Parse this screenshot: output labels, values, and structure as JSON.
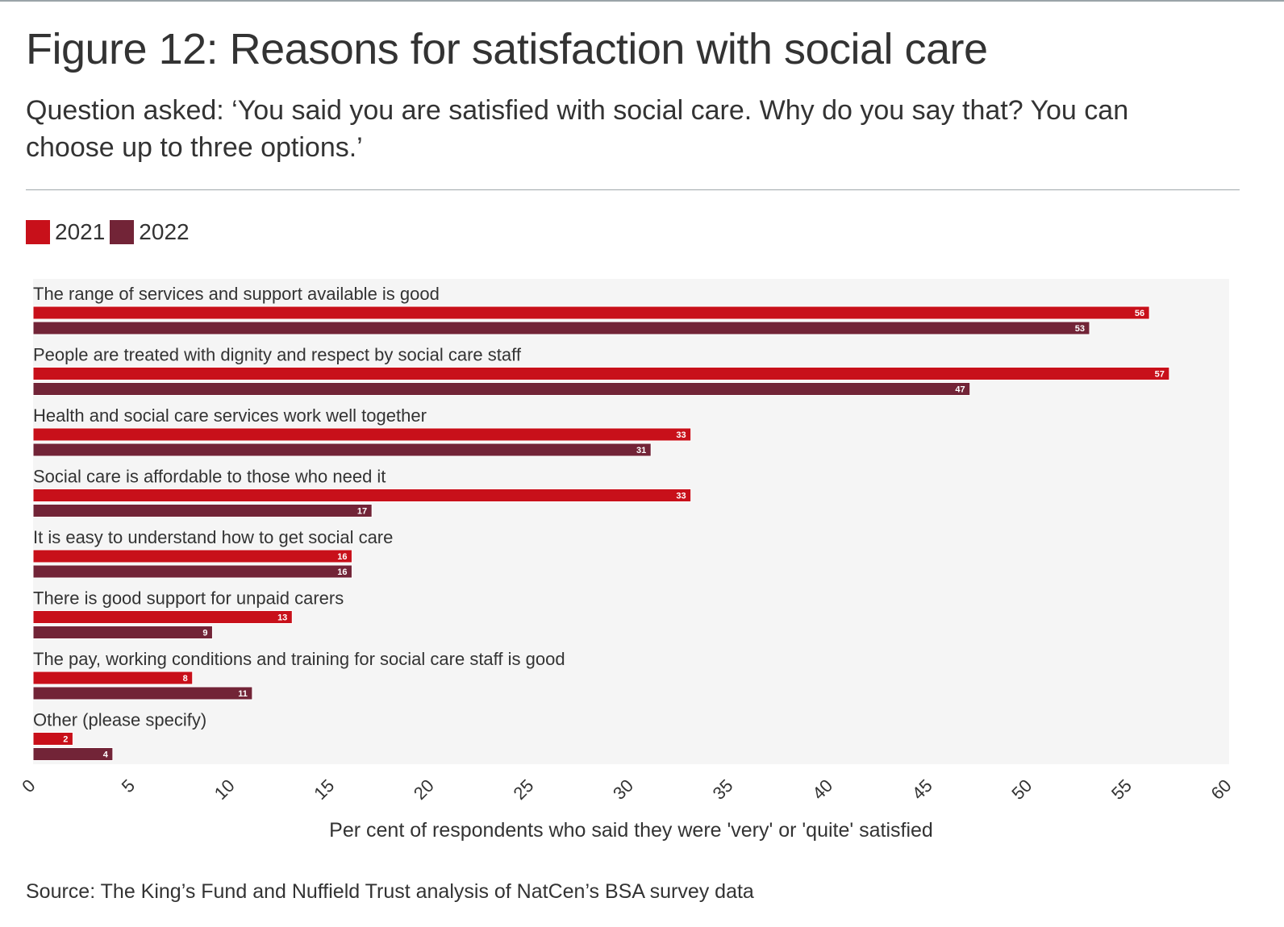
{
  "title": "Figure 12: Reasons for satisfaction with social care",
  "subtitle": "Question asked: ‘You said you are satisfied with social care. Why do you say that? You can choose up to three options.’",
  "legend": [
    {
      "label": "2021",
      "color": "#c8101a"
    },
    {
      "label": "2022",
      "color": "#722437"
    }
  ],
  "source": "Source: The King’s Fund and Nuffield Trust analysis of NatCen’s BSA survey data",
  "chart_data": {
    "type": "bar",
    "orientation": "horizontal",
    "categories": [
      "The range of services and support available is good",
      "People are treated with dignity and respect by social care staff",
      "Health and social care services work well together",
      "Social care is affordable to those who need it",
      "It is easy to understand how to get social care",
      "There is good support for unpaid carers",
      "The pay, working conditions and training for social care staff is good",
      "Other (please specify)"
    ],
    "series": [
      {
        "name": "2021",
        "color": "#c8101a",
        "values": [
          56,
          57,
          33,
          33,
          16,
          13,
          8,
          2
        ]
      },
      {
        "name": "2022",
        "color": "#722437",
        "values": [
          53,
          47,
          31,
          17,
          16,
          9,
          11,
          4
        ]
      }
    ],
    "xlabel": "Per cent of respondents who said they were 'very' or 'quite' satisfied",
    "xlim": [
      0,
      60
    ],
    "xticks": [
      "0",
      "5",
      "10",
      "15",
      "20",
      "25",
      "30",
      "35",
      "40",
      "45",
      "50",
      "55",
      "60"
    ],
    "title": "Figure 12: Reasons for satisfaction with social care"
  }
}
